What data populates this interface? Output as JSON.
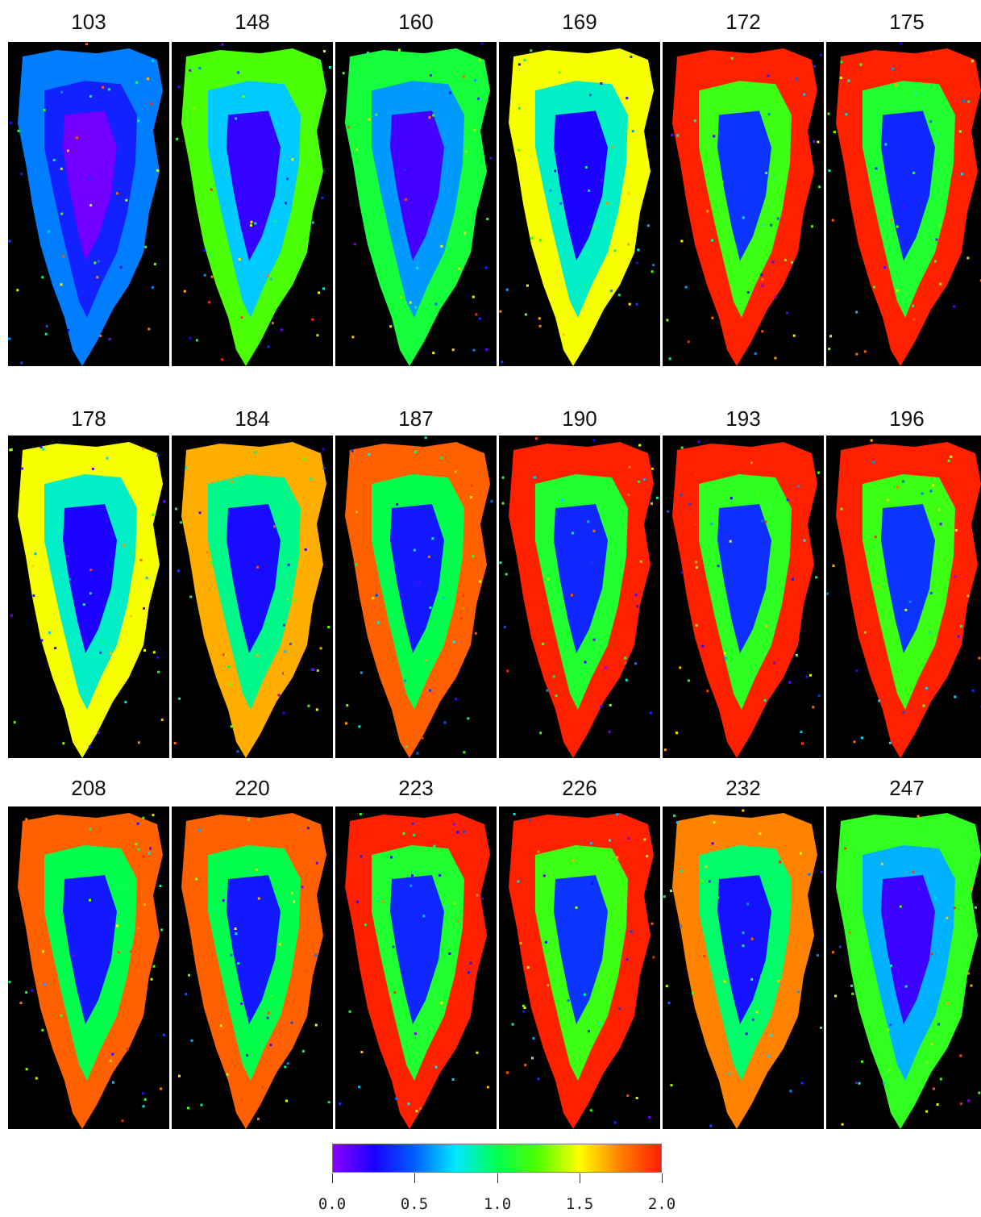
{
  "figure": {
    "rows": [
      {
        "panels": [
          {
            "label": "103",
            "level": 0.15
          },
          {
            "label": "148",
            "level": 0.55
          },
          {
            "label": "160",
            "level": 0.45
          },
          {
            "label": "169",
            "level": 0.7
          },
          {
            "label": "172",
            "level": 1.1
          },
          {
            "label": "175",
            "level": 1.0
          }
        ]
      },
      {
        "panels": [
          {
            "label": "178",
            "level": 0.7
          },
          {
            "label": "184",
            "level": 0.8
          },
          {
            "label": "187",
            "level": 0.9
          },
          {
            "label": "190",
            "level": 1.0
          },
          {
            "label": "193",
            "level": 1.05
          },
          {
            "label": "196",
            "level": 1.1
          }
        ]
      },
      {
        "panels": [
          {
            "label": "208",
            "level": 0.9
          },
          {
            "label": "220",
            "level": 0.9
          },
          {
            "label": "223",
            "level": 1.0
          },
          {
            "label": "226",
            "level": 1.1
          },
          {
            "label": "232",
            "level": 0.85
          },
          {
            "label": "247",
            "level": 0.5
          }
        ]
      }
    ]
  },
  "colorbar": {
    "min": 0.0,
    "max": 2.0,
    "ticks": [
      "0.0",
      "0.5",
      "1.0",
      "1.5",
      "2.0"
    ],
    "stops": [
      "#8a00ff",
      "#1a00ff",
      "#0060ff",
      "#00e8ff",
      "#00ff50",
      "#50ff00",
      "#ffff00",
      "#ff8000",
      "#ff2000"
    ]
  }
}
